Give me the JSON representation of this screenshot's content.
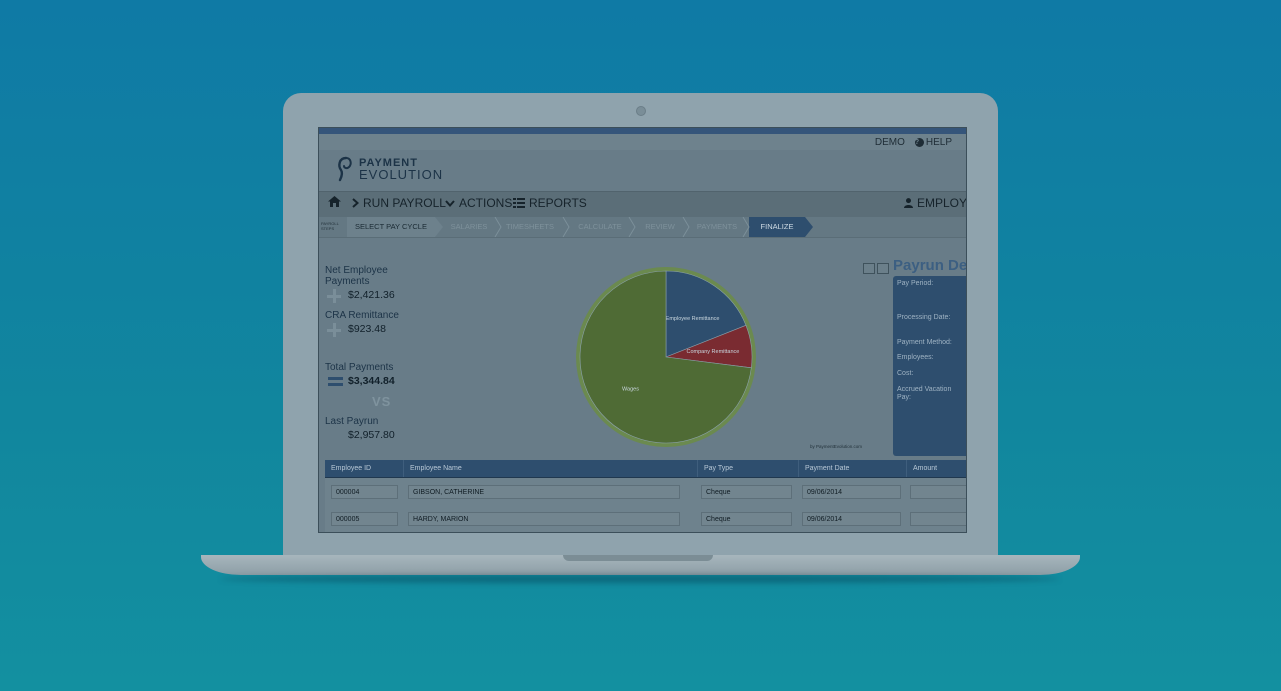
{
  "header": {
    "demo": "DEMO",
    "help": "HELP"
  },
  "logo": {
    "line1": "PAYMENT",
    "line2": "EVOLUTION"
  },
  "nav": {
    "run_payroll": "RUN PAYROLL",
    "actions": "ACTIONS",
    "reports": "REPORTS",
    "employees": "EMPLOYE"
  },
  "steps": {
    "label": "PAYROLL STEPS",
    "items": [
      "SELECT PAY CYCLE",
      "SALARIES",
      "TIMESHEETS",
      "CALCULATE",
      "REVIEW",
      "PAYMENTS",
      "FINALIZE"
    ]
  },
  "summary": {
    "net_label": "Net Employee Payments",
    "net_value": "$2,421.36",
    "cra_label": "CRA Remittance",
    "cra_value": "$923.48",
    "total_label": "Total Payments",
    "total_value": "$3,344.84",
    "vs": "VS",
    "last_label": "Last Payrun",
    "last_value": "$2,957.80"
  },
  "chart_data": {
    "type": "pie",
    "labels": [
      "Employee Remittance",
      "Company Remittance",
      "Wages"
    ],
    "values": [
      19,
      8,
      73
    ],
    "colors": [
      "#2e4e6e",
      "#7a2b31",
      "#4f6b35"
    ],
    "credit": "by PaymentEvolution.com"
  },
  "details": {
    "title": "Payrun De",
    "labels": [
      "Pay Period:",
      "Processing Date:",
      "Payment Method:",
      "Employees:",
      "Cost:",
      "Accrued Vacation Pay:"
    ]
  },
  "table": {
    "headers": [
      "Employee ID",
      "Employee Name",
      "Pay Type",
      "Payment Date",
      "Amount"
    ],
    "rows": [
      {
        "id": "000004",
        "name": "GIBSON, CATHERINE",
        "pay_type": "Cheque",
        "date": "09/06/2014",
        "amount": ""
      },
      {
        "id": "000005",
        "name": "HARDY, MARION",
        "pay_type": "Cheque",
        "date": "09/06/2014",
        "amount": ""
      }
    ]
  }
}
